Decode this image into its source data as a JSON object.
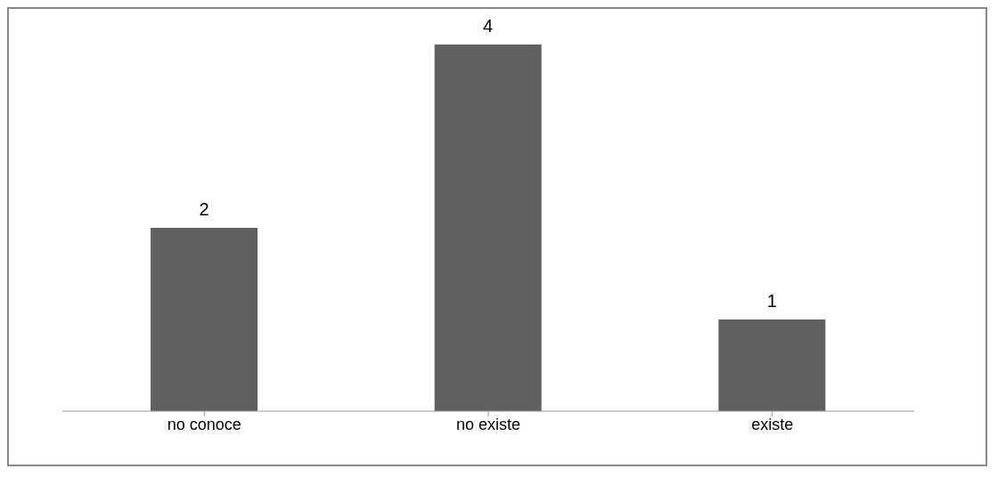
{
  "chart_data": {
    "type": "bar",
    "categories": [
      "no conoce",
      "no existe",
      "existe"
    ],
    "values": [
      2,
      4,
      1
    ],
    "color": "#606060",
    "data_labels": true,
    "grid": false,
    "legend": false
  }
}
